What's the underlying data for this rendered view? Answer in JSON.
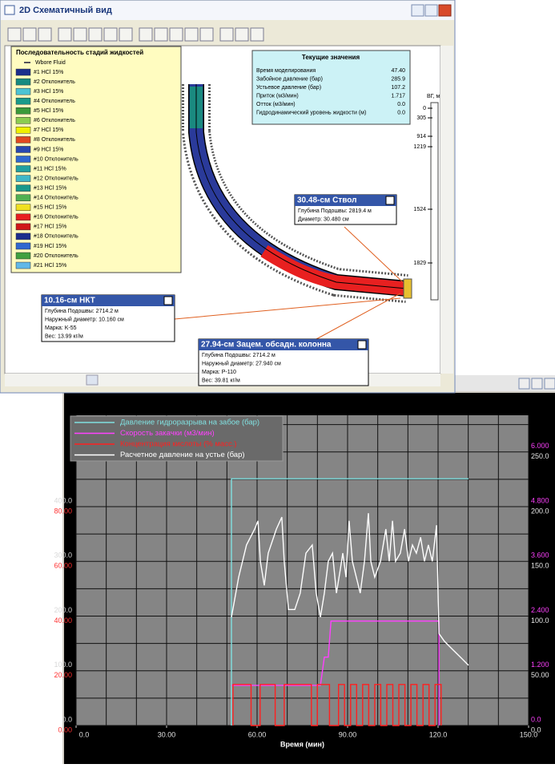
{
  "window": {
    "title": "2D Схематичный вид",
    "legend": {
      "title": "Последовательность стадий жидкостей",
      "items": [
        {
          "label": "Wbore Fluid",
          "color": "#1a1a3a"
        },
        {
          "label": "#1  HCl 15%",
          "color": "#1c2e8c"
        },
        {
          "label": "#2  Отклонитель",
          "color": "#168a80"
        },
        {
          "label": "#3  HCl 15%",
          "color": "#4cc4d4"
        },
        {
          "label": "#4  Отклонитель",
          "color": "#1a9a8a"
        },
        {
          "label": "#5  HCl 15%",
          "color": "#3a9a3a"
        },
        {
          "label": "#6  Отклонитель",
          "color": "#8ccc50"
        },
        {
          "label": "#7  HCl 15%",
          "color": "#f0f000"
        },
        {
          "label": "#8  Отклонитель",
          "color": "#e04820"
        },
        {
          "label": "#9  HCl 15%",
          "color": "#2848b0"
        },
        {
          "label": "#10  Отклонитель",
          "color": "#3068d0"
        },
        {
          "label": "#11  HCl 15%",
          "color": "#20a0a0"
        },
        {
          "label": "#12  Отклонитель",
          "color": "#40b8c8"
        },
        {
          "label": "#13  HCl 15%",
          "color": "#18988a"
        },
        {
          "label": "#14  Отклонитель",
          "color": "#50b050"
        },
        {
          "label": "#15  HCl 15%",
          "color": "#f0e020"
        },
        {
          "label": "#16  Отклонитель",
          "color": "#e82020"
        },
        {
          "label": "#17  HCl 15%",
          "color": "#d01818"
        },
        {
          "label": "#18  Отклонитель",
          "color": "#1c2e8c"
        },
        {
          "label": "#19  HCl 15%",
          "color": "#3068d0"
        },
        {
          "label": "#20  Отклонитель",
          "color": "#40a040"
        },
        {
          "label": "#21  HCl 15%",
          "color": "#60b8e8"
        }
      ]
    },
    "current": {
      "title": "Текущие значения",
      "rows": [
        [
          "Время моделирования",
          "47.40"
        ],
        [
          "Забойное давление (бар)",
          "285.9"
        ],
        [
          "Устьевое давление (бар)",
          "107.2"
        ],
        [
          "Приток (м3/мин)",
          "1.717"
        ],
        [
          "Отток (м3/мин)",
          "0.0"
        ],
        [
          "Гидродинамический уровень жидкости (м)",
          "0.0"
        ]
      ]
    },
    "depth": {
      "label": "ВГ, м",
      "ticks": [
        "0",
        "305",
        "914",
        "1219",
        "1524",
        "1829"
      ]
    },
    "callouts": [
      {
        "title": "30.48-см Ствол",
        "lines": [
          "Глубина Подошвы:  2819.4 м",
          "Диаметр:  30.480 см"
        ]
      },
      {
        "title": "10.16-см НКТ",
        "lines": [
          "Глубина Подошвы:  2714.2 м",
          "Наружный диаметр:  10.160 см",
          "Марка: K-55",
          "Вес:  13.99 кг/м"
        ]
      },
      {
        "title": "27.94-см Зацем. обсадн. колонна",
        "lines": [
          "Глубина Подошвы:  2714.2 м",
          "Наружный диаметр:  27.940 см",
          "Марка: P-110",
          "Вес:  39.81 кг/м"
        ]
      }
    ]
  },
  "chart_data": {
    "type": "line",
    "x_label": "Время (мин)",
    "xlim": [
      0,
      150
    ],
    "xticks": [
      {
        "value": 0,
        "label": "0.0"
      },
      {
        "value": 30,
        "label": "30.00"
      },
      {
        "value": 60,
        "label": "60.00"
      },
      {
        "value": 90,
        "label": "90.00"
      },
      {
        "value": 120,
        "label": "120.0"
      },
      {
        "value": 150,
        "label": "150.0"
      }
    ],
    "xgrid": [
      0,
      10,
      20,
      30,
      40,
      50,
      60,
      70,
      80,
      90,
      100,
      110,
      120,
      130,
      140,
      150
    ],
    "ygrid": [
      0,
      50,
      100,
      150,
      200,
      250,
      300,
      350,
      400,
      450,
      500,
      550
    ],
    "grid": true,
    "axes": [
      {
        "side": "left",
        "color": "#d8d8d8",
        "ylim": [
          0,
          567
        ],
        "yticks": [
          {
            "value": 0,
            "label": "0.0"
          },
          {
            "value": 100,
            "label": "100.0"
          },
          {
            "value": 200,
            "label": "200.0"
          },
          {
            "value": 300,
            "label": "300.0"
          },
          {
            "value": 400,
            "label": "400.0"
          }
        ]
      },
      {
        "side": "left",
        "color": "#ff3030",
        "ylim": [
          0,
          113.4
        ],
        "yticks": [
          {
            "value": 0,
            "label": "0.00"
          },
          {
            "value": 20,
            "label": "20.00"
          },
          {
            "value": 40,
            "label": "40.00"
          },
          {
            "value": 60,
            "label": "60.00"
          },
          {
            "value": 80,
            "label": "80.00"
          }
        ]
      },
      {
        "side": "right",
        "color": "#ff40ff",
        "ylim": [
          0,
          6.804
        ],
        "yticks": [
          {
            "value": 0,
            "label": "0.0"
          },
          {
            "value": 1.2,
            "label": "1.200"
          },
          {
            "value": 2.4,
            "label": "2.400"
          },
          {
            "value": 3.6,
            "label": "3.600"
          },
          {
            "value": 4.8,
            "label": "4.800"
          },
          {
            "value": 6,
            "label": "6.000"
          }
        ]
      },
      {
        "side": "right",
        "color": "#e8e8e8",
        "ylim": [
          0,
          283.5
        ],
        "yticks": [
          {
            "value": 0,
            "label": "0.0"
          },
          {
            "value": 50,
            "label": "50.00"
          },
          {
            "value": 100,
            "label": "100.0"
          },
          {
            "value": 150,
            "label": "150.0"
          },
          {
            "value": 200,
            "label": "200.0"
          },
          {
            "value": 250,
            "label": "250.0"
          }
        ]
      }
    ],
    "series": [
      {
        "name": "Давление гидроразрыва на забое (бар)",
        "color": "#80e0e0",
        "axis": 0,
        "x": [
          51.5,
          51.5,
          130.1
        ],
        "values": [
          0,
          451,
          451
        ]
      },
      {
        "name": "Скорость закачки (м3/мин)",
        "color": "#ff40ff",
        "axis": 2,
        "x": [
          51.5,
          81.0,
          82.3,
          83.6,
          84.5,
          120.3,
          120.3
        ],
        "values": [
          0.88,
          0.88,
          1.5,
          1.5,
          2.29,
          2.29,
          0
        ]
      },
      {
        "name": "Концентрация кислоты (% масс.)",
        "color": "#ff2020",
        "axis": 1,
        "x": [
          52,
          52,
          58,
          58,
          61,
          61,
          66,
          66,
          69,
          69,
          78,
          78,
          80,
          80,
          84,
          84,
          87,
          87,
          89,
          89,
          91,
          91,
          93,
          93,
          95,
          95,
          97,
          97,
          99,
          99,
          101,
          101,
          103,
          103,
          105,
          105,
          107,
          107,
          109,
          109,
          111,
          111,
          113,
          113,
          115,
          115,
          117,
          117,
          119,
          119,
          121,
          121
        ],
        "values": [
          0,
          15,
          15,
          0,
          0,
          15,
          15,
          0,
          0,
          15,
          15,
          0,
          0,
          15,
          15,
          0,
          0,
          15,
          15,
          0,
          0,
          15,
          15,
          0,
          0,
          15,
          15,
          0,
          0,
          15,
          15,
          0,
          0,
          15,
          15,
          0,
          0,
          15,
          15,
          0,
          0,
          15,
          15,
          0,
          0,
          15,
          15,
          0,
          0,
          15,
          15,
          0
        ]
      },
      {
        "name": "Расчетное давление на устье (бар)",
        "color": "#ffffff",
        "axis": 0,
        "x": [
          51.5,
          53.9,
          56.5,
          59.2,
          60.3,
          61.1,
          62.4,
          63.7,
          66.4,
          68.2,
          69.0,
          70.4,
          72.5,
          74.3,
          76.2,
          78.3,
          79.6,
          81.0,
          82.3,
          83.6,
          85.0,
          86.3,
          87.6,
          88.4,
          89.5,
          90.5,
          91.6,
          92.9,
          94.2,
          95.6,
          96.9,
          97.7,
          99.0,
          100.9,
          102.7,
          103.8,
          104.9,
          105.9,
          107.5,
          108.9,
          110.2,
          111.5,
          112.8,
          114.2,
          115.5,
          116.8,
          118.1,
          119.5,
          120.3,
          122.1,
          124.8,
          127.4,
          130.1
        ],
        "values": [
          198,
          271,
          330,
          359,
          374,
          300,
          256,
          315,
          359,
          381,
          300,
          212,
          212,
          242,
          315,
          330,
          242,
          198,
          242,
          300,
          315,
          242,
          286,
          315,
          271,
          374,
          300,
          271,
          242,
          300,
          388,
          300,
          271,
          300,
          359,
          300,
          374,
          300,
          315,
          359,
          300,
          330,
          315,
          344,
          300,
          330,
          300,
          366,
          168,
          154,
          139,
          125,
          110
        ]
      }
    ]
  }
}
